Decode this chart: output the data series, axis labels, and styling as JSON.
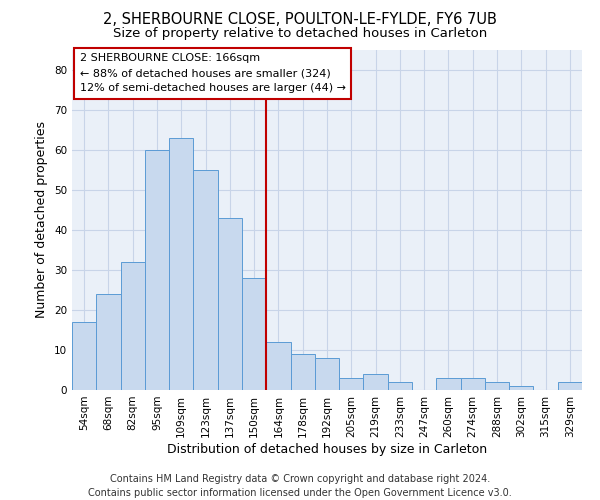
{
  "title_line1": "2, SHERBOURNE CLOSE, POULTON-LE-FYLDE, FY6 7UB",
  "title_line2": "Size of property relative to detached houses in Carleton",
  "xlabel": "Distribution of detached houses by size in Carleton",
  "ylabel": "Number of detached properties",
  "categories": [
    "54sqm",
    "68sqm",
    "82sqm",
    "95sqm",
    "109sqm",
    "123sqm",
    "137sqm",
    "150sqm",
    "164sqm",
    "178sqm",
    "192sqm",
    "205sqm",
    "219sqm",
    "233sqm",
    "247sqm",
    "260sqm",
    "274sqm",
    "288sqm",
    "302sqm",
    "315sqm",
    "329sqm"
  ],
  "values": [
    17,
    24,
    32,
    60,
    63,
    55,
    43,
    28,
    12,
    9,
    8,
    3,
    4,
    2,
    0,
    3,
    3,
    2,
    1,
    0,
    2
  ],
  "bar_color": "#c8d9ee",
  "bar_edge_color": "#5b9bd5",
  "vline_color": "#c00000",
  "annotation_line1": "2 SHERBOURNE CLOSE: 166sqm",
  "annotation_line2": "← 88% of detached houses are smaller (324)",
  "annotation_line3": "12% of semi-detached houses are larger (44) →",
  "annotation_box_color": "#ffffff",
  "annotation_box_edge": "#c00000",
  "ylim": [
    0,
    85
  ],
  "yticks": [
    0,
    10,
    20,
    30,
    40,
    50,
    60,
    70,
    80
  ],
  "grid_color": "#c8d4e8",
  "bg_color": "#eaf0f8",
  "footer_line1": "Contains HM Land Registry data © Crown copyright and database right 2024.",
  "footer_line2": "Contains public sector information licensed under the Open Government Licence v3.0.",
  "title_fontsize": 10.5,
  "subtitle_fontsize": 9.5,
  "axis_label_fontsize": 9,
  "tick_fontsize": 7.5,
  "annotation_fontsize": 8,
  "footer_fontsize": 7
}
